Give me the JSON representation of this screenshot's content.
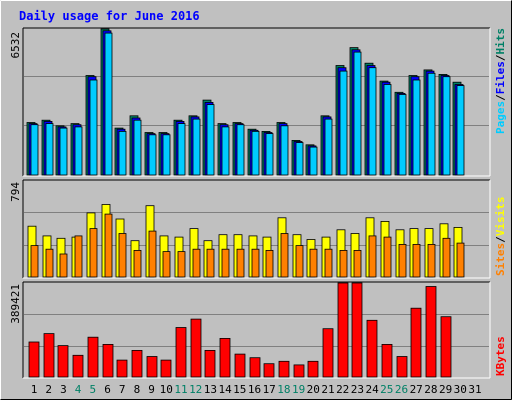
{
  "chart_data": {
    "type": "bar",
    "title": "Daily usage for June 2016",
    "days": [
      "1",
      "2",
      "3",
      "4",
      "5",
      "6",
      "7",
      "8",
      "9",
      "10",
      "11",
      "12",
      "13",
      "14",
      "15",
      "16",
      "17",
      "18",
      "19",
      "20",
      "21",
      "22",
      "23",
      "24",
      "25",
      "26",
      "27",
      "28",
      "29",
      "30",
      "31"
    ],
    "weekend_days": [
      "4",
      "5",
      "11",
      "12",
      "18",
      "19",
      "25",
      "26"
    ],
    "panels": [
      {
        "id": "hits-files-pages",
        "max_label": "6532",
        "ylim": [
          0,
          6532
        ],
        "legend": [
          "Pages",
          "/",
          "Files",
          "/",
          "Hits"
        ],
        "legend_colors": [
          "#00ccff",
          "#000000",
          "#0000ff",
          "#000000",
          "#008066"
        ],
        "series": [
          {
            "name": "Hits",
            "color": "#008066",
            "values": [
              2350,
              2450,
              2200,
              2300,
              4450,
              6550,
              2100,
              2650,
              1900,
              1900,
              2450,
              2650,
              3350,
              2300,
              2350,
              2050,
              1950,
              2350,
              1550,
              1350,
              2650,
              4900,
              5700,
              5000,
              4200,
              3700,
              4450,
              4700,
              4500,
              4150,
              null
            ]
          },
          {
            "name": "Files",
            "color": "#0000ff",
            "values": [
              2300,
              2400,
              2150,
              2250,
              4400,
              6450,
              2050,
              2550,
              1850,
              1850,
              2400,
              2600,
              3250,
              2250,
              2300,
              2000,
              1900,
              2300,
              1500,
              1300,
              2600,
              4800,
              5600,
              4900,
              4150,
              3650,
              4400,
              4650,
              4450,
              4050,
              null
            ]
          },
          {
            "name": "Pages",
            "color": "#00ccff",
            "values": [
              2250,
              2300,
              2100,
              2150,
              4250,
              6350,
              1950,
              2450,
              1800,
              1800,
              2300,
              2500,
              3150,
              2150,
              2250,
              1950,
              1850,
              2200,
              1450,
              1250,
              2500,
              4650,
              5500,
              4800,
              4050,
              3600,
              4250,
              4550,
              4400,
              4000,
              null
            ]
          }
        ]
      },
      {
        "id": "visits-sites",
        "max_label": "794",
        "ylim": [
          0,
          794
        ],
        "legend": [
          "Sites",
          "/",
          "Visits"
        ],
        "legend_colors": [
          "#ff8000",
          "#000000",
          "#ffff00"
        ],
        "series": [
          {
            "name": "Visits",
            "color": "#ffff00",
            "values": [
              420,
              340,
              320,
              330,
              530,
              600,
              480,
              300,
              590,
              340,
              330,
              400,
              300,
              350,
              350,
              340,
              330,
              490,
              350,
              310,
              330,
              390,
              360,
              490,
              460,
              390,
              400,
              400,
              440,
              410,
              null
            ]
          },
          {
            "name": "Sites",
            "color": "#ff8000",
            "values": [
              260,
              230,
              190,
              340,
              400,
              520,
              360,
              220,
              380,
              210,
              210,
              230,
              230,
              230,
              230,
              230,
              220,
              360,
              260,
              230,
              230,
              220,
              220,
              340,
              330,
              270,
              270,
              270,
              320,
              280,
              null
            ]
          }
        ]
      },
      {
        "id": "kbytes",
        "max_label": "389421",
        "ylim": [
          0,
          389421
        ],
        "legend": [
          "KBytes"
        ],
        "legend_colors": [
          "#ff0000"
        ],
        "series": [
          {
            "name": "KBytes",
            "color": "#ff0000",
            "values": [
              145000,
              180000,
              130000,
              90000,
              165000,
              135000,
              70000,
              110000,
              85000,
              70000,
              205000,
              240000,
              110000,
              160000,
              95000,
              80000,
              55000,
              65000,
              50000,
              65000,
              200000,
              390000,
              390000,
              235000,
              135000,
              85000,
              285000,
              375000,
              250000,
              null,
              null
            ]
          }
        ]
      }
    ]
  }
}
